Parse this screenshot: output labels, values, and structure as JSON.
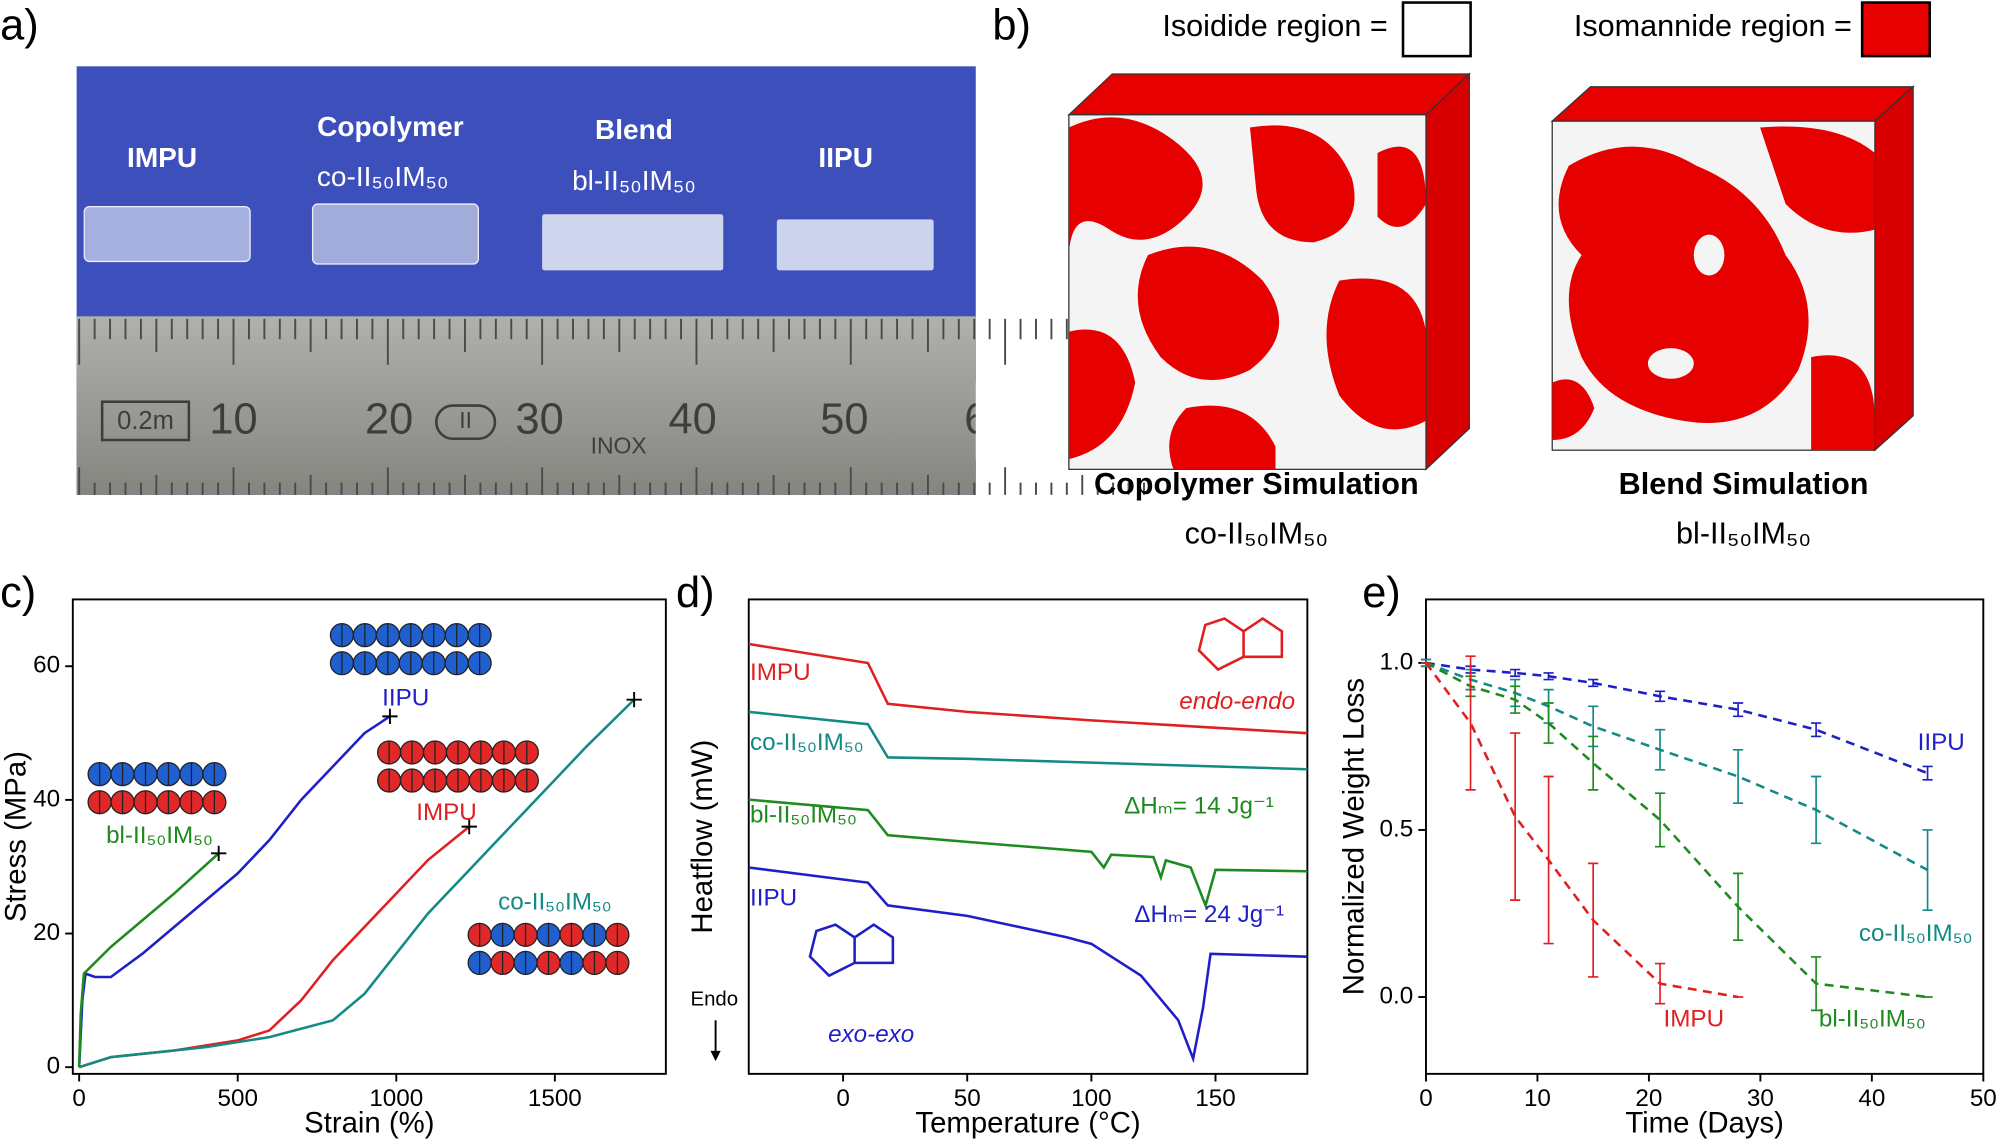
{
  "panel_labels": [
    "a)",
    "b)",
    "c)",
    "d)",
    "e)"
  ],
  "photo": {
    "samples": [
      {
        "name": "IMPU"
      },
      {
        "name": "Copolymer",
        "sub": "co-II₅₀IM₅₀"
      },
      {
        "name": "Blend",
        "sub": "bl-II₅₀IM₅₀"
      },
      {
        "name": "IIPU"
      }
    ],
    "ruler": [
      "0.2m",
      "10",
      "20",
      "II",
      "30",
      "INOX",
      "40",
      "50",
      "6"
    ]
  },
  "simulation": {
    "legend": [
      "Isoidide region =",
      "Isomannide region ="
    ],
    "panels": [
      {
        "title": "Copolymer Simulation",
        "subtitle": "co-II₅₀IM₅₀"
      },
      {
        "title": "Blend Simulation",
        "subtitle": "bl-II₅₀IM₅₀"
      }
    ]
  },
  "chart_data": [
    {
      "type": "line",
      "xlabel": "Strain (%)",
      "ylabel": "Stress (MPa)",
      "xlim": [
        -20,
        1850
      ],
      "xticks": [
        0,
        500,
        1000,
        1500
      ],
      "ylim": [
        -1,
        70
      ],
      "yticks": [
        0,
        20,
        40,
        60
      ],
      "end_markers": true,
      "series": [
        {
          "name": "IIPU",
          "color": "#1f1fc8",
          "x": [
            0,
            10,
            20,
            50,
            100,
            200,
            300,
            400,
            500,
            600,
            700,
            800,
            900,
            980
          ],
          "values": [
            0,
            10,
            14,
            13.5,
            13.5,
            17,
            21,
            25,
            29,
            34,
            40,
            45,
            50,
            52.5
          ]
        },
        {
          "name": "IMPU",
          "color": "#e02020",
          "x": [
            0,
            100,
            300,
            500,
            600,
            700,
            800,
            900,
            1000,
            1100,
            1230
          ],
          "values": [
            0,
            1.5,
            2.5,
            4,
            5.5,
            10,
            16,
            21,
            26,
            31,
            36
          ]
        },
        {
          "name": "co-II₅₀IM₅₀",
          "color": "#138a84",
          "x": [
            0,
            100,
            400,
            600,
            800,
            900,
            1000,
            1100,
            1200,
            1300,
            1400,
            1500,
            1600,
            1750
          ],
          "values": [
            0,
            1.5,
            3,
            4.5,
            7,
            11,
            17,
            23,
            28,
            33,
            38,
            43,
            48,
            55
          ]
        },
        {
          "name": "bl-II₅₀IM₅₀",
          "color": "#1f8a1f",
          "x": [
            0,
            5,
            15,
            100,
            200,
            300,
            440
          ],
          "values": [
            0,
            8,
            14,
            18,
            22,
            26,
            32
          ]
        }
      ]
    },
    {
      "type": "line",
      "xlabel": "Temperature (°C)",
      "ylabel": "Heatflow (mW)",
      "xlim": [
        -38,
        187
      ],
      "xticks": [
        0,
        50,
        100,
        150
      ],
      "ylim": [
        0,
        100
      ],
      "annotations": [
        "ΔHₘ= 14 Jg⁻¹",
        "ΔHₘ= 24 Jg⁻¹",
        "endo-endo",
        "exo-exo",
        "Endo"
      ],
      "series": [
        {
          "name": "IMPU",
          "color": "#e02020",
          "x": [
            -38,
            10,
            18,
            50,
            100,
            187
          ],
          "values": [
            90.6,
            86.6,
            78,
            76.3,
            74.5,
            71.8
          ]
        },
        {
          "name": "co-II₅₀IM₅₀",
          "color": "#138a84",
          "x": [
            -38,
            10,
            18,
            50,
            100,
            187
          ],
          "values": [
            76.3,
            73.7,
            66.7,
            66.4,
            65.6,
            64.2
          ]
        },
        {
          "name": "bl-II₅₀IM₅₀",
          "color": "#1f8a1f",
          "x": [
            -38,
            10,
            18,
            50,
            100,
            105,
            108,
            125,
            128,
            130,
            140,
            146,
            150,
            187
          ],
          "values": [
            57.8,
            55.6,
            50.3,
            48.9,
            46.8,
            43.5,
            46.2,
            45.7,
            41.4,
            45,
            43.5,
            35.5,
            43,
            42.7
          ]
        },
        {
          "name": "IIPU",
          "color": "#1f1fc8",
          "x": [
            -38,
            10,
            18,
            50,
            90,
            100,
            120,
            135,
            141,
            145,
            148,
            187
          ],
          "values": [
            43.5,
            40.3,
            35.5,
            33.3,
            28.8,
            27.4,
            20.7,
            11.3,
            3.2,
            14,
            25.3,
            24.7
          ]
        }
      ]
    },
    {
      "type": "line",
      "line_style": "dashed",
      "xlabel": "Time (Days)",
      "ylabel": "Normalized Weight Loss",
      "xlim": [
        0,
        50
      ],
      "xticks": [
        0,
        10,
        20,
        30,
        40,
        50
      ],
      "ylim": [
        -0.23,
        1.19
      ],
      "yticks": [
        {
          "value": 0,
          "label": "0.0"
        },
        {
          "value": 0.5,
          "label": "0.5"
        },
        {
          "value": 1,
          "label": "1.0"
        }
      ],
      "series": [
        {
          "name": "IIPU",
          "color": "#1f1fc8",
          "x": [
            0,
            4,
            8,
            11,
            15,
            21,
            28,
            35,
            45
          ],
          "values": [
            1.0,
            0.98,
            0.97,
            0.96,
            0.94,
            0.9,
            0.86,
            0.8,
            0.67
          ],
          "errors": [
            0.01,
            0.01,
            0.01,
            0.01,
            0.01,
            0.015,
            0.02,
            0.02,
            0.02
          ]
        },
        {
          "name": "co-II₅₀IM₅₀",
          "color": "#138a84",
          "x": [
            0,
            4,
            8,
            11,
            15,
            21,
            28,
            35,
            45
          ],
          "values": [
            1.0,
            0.95,
            0.91,
            0.87,
            0.81,
            0.74,
            0.66,
            0.56,
            0.38
          ],
          "errors": [
            0.01,
            0.03,
            0.04,
            0.05,
            0.06,
            0.06,
            0.08,
            0.1,
            0.12
          ]
        },
        {
          "name": "bl-II₅₀IM₅₀",
          "color": "#1f8a1f",
          "x": [
            0,
            4,
            8,
            11,
            15,
            21,
            28,
            35,
            45
          ],
          "values": [
            1.0,
            0.93,
            0.89,
            0.82,
            0.7,
            0.53,
            0.27,
            0.04,
            0.0
          ],
          "errors": [
            0,
            0.03,
            0.04,
            0.06,
            0.08,
            0.08,
            0.1,
            0.08,
            0
          ]
        },
        {
          "name": "IMPU",
          "color": "#e02020",
          "x": [
            0,
            4,
            8,
            11,
            15,
            21,
            28
          ],
          "values": [
            1.0,
            0.82,
            0.54,
            0.41,
            0.23,
            0.04,
            0.0
          ],
          "errors": [
            0,
            0.2,
            0.25,
            0.25,
            0.17,
            0.06,
            0
          ]
        }
      ]
    }
  ]
}
